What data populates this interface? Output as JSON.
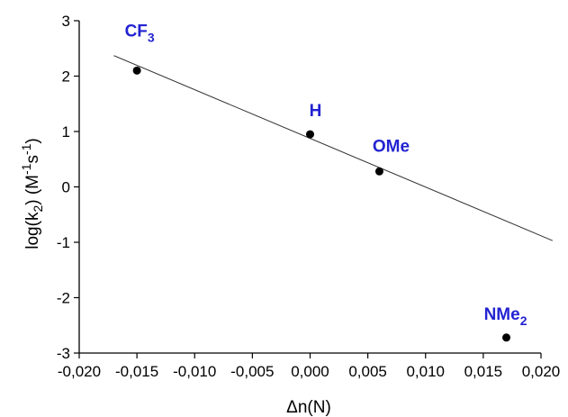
{
  "chart_data": {
    "type": "scatter",
    "title": "",
    "xlabel": "Δn(N)",
    "ylabel": {
      "prefix": "log(k",
      "sub": "2",
      "mid": ") (M",
      "sup1": "-1",
      "mid2": "s",
      "sup2": "-1",
      "suffix": ")"
    },
    "xlim": [
      -0.02,
      0.02
    ],
    "ylim": [
      -3,
      3
    ],
    "xticks": [
      -0.02,
      -0.015,
      -0.01,
      -0.005,
      0.0,
      0.005,
      0.01,
      0.015,
      0.02
    ],
    "xtick_labels": [
      "-0,020",
      "-0,015",
      "-0,010",
      "-0,005",
      "0,000",
      "0,005",
      "0,010",
      "0,015",
      "0,020"
    ],
    "yticks": [
      -3,
      -2,
      -1,
      0,
      1,
      2,
      3
    ],
    "ytick_labels": [
      "-3",
      "-2",
      "-1",
      "0",
      "1",
      "2",
      "3"
    ],
    "grid": false,
    "points": [
      {
        "label": "CF",
        "label_sub": "3",
        "x": -0.015,
        "y": 2.1
      },
      {
        "label": "H",
        "label_sub": "",
        "x": 0.0,
        "y": 0.95
      },
      {
        "label": "OMe",
        "label_sub": "",
        "x": 0.006,
        "y": 0.28
      },
      {
        "label": "NMe",
        "label_sub": "2",
        "x": 0.017,
        "y": -2.72
      }
    ],
    "fit_line": {
      "x": [
        -0.017,
        0.021
      ],
      "y": [
        2.37,
        -0.97
      ]
    },
    "colors": {
      "points": "#000000",
      "labels": "#2323d2",
      "line": "#333333",
      "axes": "#000000"
    }
  }
}
